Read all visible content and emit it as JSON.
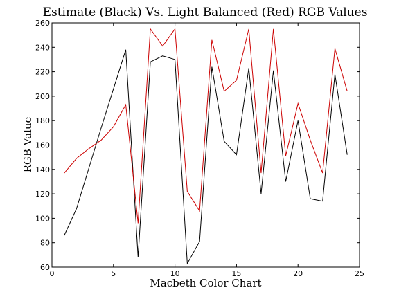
{
  "chart_data": {
    "type": "line",
    "title": "Estimate (Black) Vs. Light Balanced (Red) RGB Values",
    "xlabel": "Macbeth Color Chart",
    "ylabel": "RGB Value",
    "xlim": [
      0,
      25
    ],
    "ylim": [
      60,
      260
    ],
    "xticks": [
      0,
      5,
      10,
      15,
      20,
      25
    ],
    "yticks": [
      60,
      80,
      100,
      120,
      140,
      160,
      180,
      200,
      220,
      240,
      260
    ],
    "grid": false,
    "legend": "none",
    "x": [
      1,
      2,
      3,
      4,
      5,
      6,
      7,
      8,
      9,
      10,
      11,
      12,
      13,
      14,
      15,
      16,
      17,
      18,
      19,
      20,
      21,
      22,
      23,
      24
    ],
    "series": [
      {
        "color": "#000000",
        "values": [
          86,
          108,
          141,
          174,
          206,
          238,
          68,
          228,
          233,
          230,
          63,
          81,
          224,
          163,
          152,
          223,
          120,
          221,
          130,
          180,
          116,
          114,
          218,
          152
        ]
      },
      {
        "color": "#cc0000",
        "values": [
          137,
          149,
          157,
          164,
          175,
          193,
          96,
          255,
          241,
          255,
          122,
          106,
          246,
          204,
          213,
          255,
          137,
          255,
          151,
          194,
          164,
          137,
          239,
          204
        ]
      }
    ]
  }
}
